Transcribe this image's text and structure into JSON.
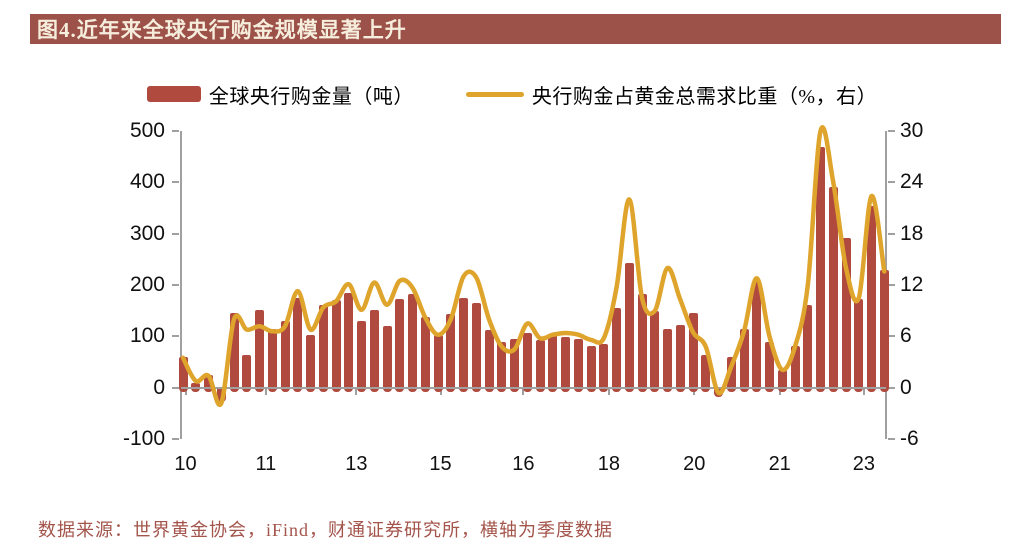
{
  "title": {
    "text": "图4.近年来全球央行购金规模显著上升"
  },
  "legend": [
    {
      "label": "全球央行购金量（吨）",
      "type": "bar"
    },
    {
      "label": "央行购金占黄金总需求比重（%，右）",
      "type": "line"
    }
  ],
  "footer": {
    "text": "数据来源：世界黄金协会，iFind，财通证券研究所，横轴为季度数据"
  },
  "colors": {
    "bar": "#B04A3F",
    "line": "#DFA42C",
    "title_bg": "#9C5149",
    "title_fg": "#F6EEDC",
    "axis": "#A0A0A0",
    "footer_fg": "#A3544B",
    "label_fg": "#111111"
  },
  "chart_data": {
    "type": "bar",
    "note": "quarterly data 2010Q1-2023Q4; bars = left axis (tonnes), line = right axis (%)",
    "categories": [
      "10Q1",
      "10Q2",
      "10Q3",
      "10Q4",
      "11Q1",
      "11Q2",
      "11Q3",
      "11Q4",
      "12Q1",
      "12Q2",
      "12Q3",
      "12Q4",
      "13Q1",
      "13Q2",
      "13Q3",
      "13Q4",
      "14Q1",
      "14Q2",
      "14Q3",
      "14Q4",
      "15Q1",
      "15Q2",
      "15Q3",
      "15Q4",
      "16Q1",
      "16Q2",
      "16Q3",
      "16Q4",
      "17Q1",
      "17Q2",
      "17Q3",
      "17Q4",
      "18Q1",
      "18Q2",
      "18Q3",
      "18Q4",
      "19Q1",
      "19Q2",
      "19Q3",
      "19Q4",
      "20Q1",
      "20Q2",
      "20Q3",
      "20Q4",
      "21Q1",
      "21Q2",
      "21Q3",
      "21Q4",
      "22Q1",
      "22Q2",
      "22Q3",
      "22Q4",
      "23Q1",
      "23Q2",
      "23Q3",
      "23Q4"
    ],
    "series": [
      {
        "name": "全球央行购金量（吨）",
        "axis": "left",
        "values": [
          60,
          10,
          25,
          -27,
          146,
          64,
          152,
          115,
          130,
          175,
          102,
          162,
          171,
          185,
          130,
          152,
          120,
          172,
          183,
          138,
          102,
          143,
          175,
          165,
          113,
          89,
          95,
          107,
          94,
          102,
          99,
          95,
          81,
          86,
          156,
          243,
          182,
          149,
          115,
          123,
          146,
          63,
          -17,
          60,
          115,
          208,
          90,
          34,
          82,
          162,
          468,
          390,
          292,
          172,
          354,
          230
        ]
      },
      {
        "name": "央行购金占黄金总需求比重（%，右）",
        "axis": "right",
        "values": [
          3.5,
          0.8,
          1.4,
          -1.8,
          8.0,
          6.8,
          7.2,
          6.6,
          7.2,
          11.3,
          6.8,
          9.4,
          10.1,
          12.1,
          9.1,
          12.3,
          9.7,
          12.5,
          11.7,
          8.2,
          6.2,
          8.0,
          13.0,
          12.9,
          8.0,
          4.8,
          4.5,
          7.5,
          5.8,
          6.2,
          6.4,
          6.2,
          5.6,
          5.8,
          11.7,
          22.0,
          10.5,
          9.0,
          14.0,
          10.3,
          6.5,
          4.8,
          -0.6,
          2.5,
          6.6,
          12.8,
          6.0,
          2.1,
          4.8,
          12.0,
          30.0,
          24.0,
          14.0,
          10.5,
          22.4,
          13.6
        ]
      }
    ],
    "left_axis": {
      "ticks": [
        500,
        400,
        300,
        200,
        100,
        0,
        -100
      ],
      "min": -100,
      "max": 500
    },
    "right_axis": {
      "ticks": [
        30,
        24,
        18,
        12,
        6,
        0,
        -6
      ],
      "min": -6,
      "max": 30
    },
    "x_labels": [
      {
        "text": "10",
        "index": 0.2
      },
      {
        "text": "11",
        "index": 6.5
      },
      {
        "text": "13",
        "index": 13.6
      },
      {
        "text": "15",
        "index": 20.2
      },
      {
        "text": "16",
        "index": 26.7
      },
      {
        "text": "18",
        "index": 33.4
      },
      {
        "text": "20",
        "index": 40.1
      },
      {
        "text": "21",
        "index": 46.8
      },
      {
        "text": "23",
        "index": 53.4
      }
    ],
    "grid": false,
    "legend_position": "top"
  }
}
